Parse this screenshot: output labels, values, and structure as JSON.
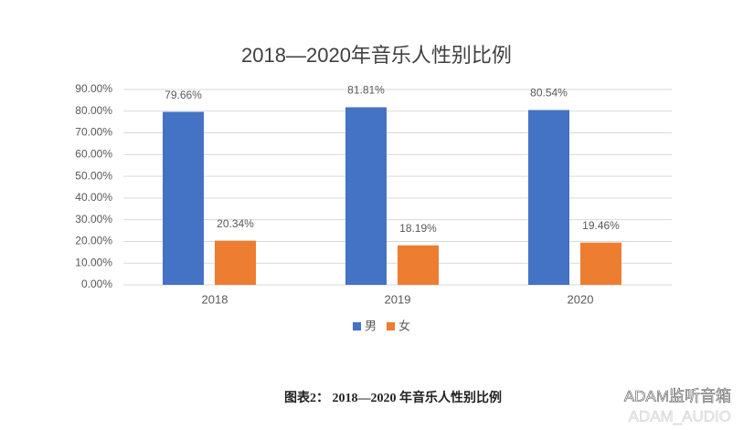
{
  "chart_data": {
    "type": "bar",
    "title": "2018—2020年音乐人性别比例",
    "categories": [
      "2018",
      "2019",
      "2020"
    ],
    "series": [
      {
        "name": "男",
        "color": "#4472c4",
        "values": [
          79.66,
          81.81,
          80.54
        ],
        "value_labels": [
          "79.66%",
          "81.81%",
          "80.54%"
        ]
      },
      {
        "name": "女",
        "color": "#ed7d31",
        "values": [
          20.34,
          18.19,
          19.46
        ],
        "value_labels": [
          "20.34%",
          "18.19%",
          "19.46%"
        ]
      }
    ],
    "ylim": [
      0,
      90
    ],
    "yticks": [
      {
        "value": 0,
        "label": "0.00%"
      },
      {
        "value": 10,
        "label": "10.00%"
      },
      {
        "value": 20,
        "label": "20.00%"
      },
      {
        "value": 30,
        "label": "30.00%"
      },
      {
        "value": 40,
        "label": "40.00%"
      },
      {
        "value": 50,
        "label": "50.00%"
      },
      {
        "value": 60,
        "label": "60.00%"
      },
      {
        "value": 70,
        "label": "70.00%"
      },
      {
        "value": 80,
        "label": "80.00%"
      },
      {
        "value": 90,
        "label": "90.00%"
      }
    ],
    "grid": true,
    "legend": "bottom"
  },
  "caption": "图表2：  2018—2020 年音乐人性别比例",
  "watermark": [
    "ADAM监听音箱",
    "ADAM_AUDIO"
  ]
}
